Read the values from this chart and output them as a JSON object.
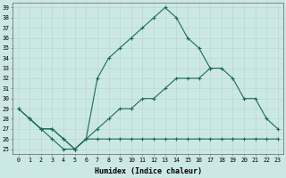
{
  "bg_color": "#cce8e4",
  "line_color": "#1a6b5e",
  "grid_color": "#b8d8d4",
  "xlabel": "Humidex (Indice chaleur)",
  "x_ticks": [
    0,
    1,
    2,
    3,
    4,
    5,
    6,
    7,
    8,
    9,
    10,
    11,
    12,
    13,
    14,
    15,
    16,
    17,
    18,
    19,
    20,
    21,
    22,
    23
  ],
  "y_ticks": [
    25,
    26,
    27,
    28,
    29,
    30,
    31,
    32,
    33,
    34,
    35,
    36,
    37,
    38,
    39
  ],
  "xlim": [
    -0.5,
    23.5
  ],
  "ylim": [
    24.5,
    39.5
  ],
  "series": [
    {
      "x": [
        0,
        1,
        2,
        3,
        4,
        5,
        6,
        7,
        8,
        9,
        10,
        11,
        12,
        13,
        14,
        15,
        16,
        17,
        18,
        19,
        20,
        21,
        22
      ],
      "y": [
        29,
        28,
        27,
        27,
        26,
        25,
        26,
        32,
        34,
        35,
        36,
        37,
        38,
        39,
        38,
        36,
        35,
        33,
        null,
        null,
        null,
        null,
        null
      ]
    },
    {
      "x": [
        0,
        1,
        2,
        3,
        4,
        5,
        6,
        7,
        8,
        9,
        10,
        11,
        12,
        13,
        14,
        15,
        16,
        17,
        18,
        19,
        20,
        21,
        22,
        23
      ],
      "y": [
        29,
        28,
        27,
        27,
        26,
        25,
        26,
        27,
        28,
        29,
        29,
        30,
        30,
        31,
        32,
        32,
        32,
        33,
        33,
        32,
        30,
        30,
        28,
        27
      ]
    },
    {
      "x": [
        1,
        2,
        3,
        4,
        5,
        6,
        7,
        8,
        9,
        10,
        11,
        12,
        13,
        14,
        15,
        16,
        17,
        18,
        19,
        20,
        21,
        22,
        23
      ],
      "y": [
        28,
        27,
        26,
        25,
        25,
        26,
        26,
        26,
        26,
        26,
        26,
        26,
        26,
        26,
        26,
        26,
        26,
        26,
        26,
        26,
        26,
        26,
        26
      ]
    }
  ]
}
